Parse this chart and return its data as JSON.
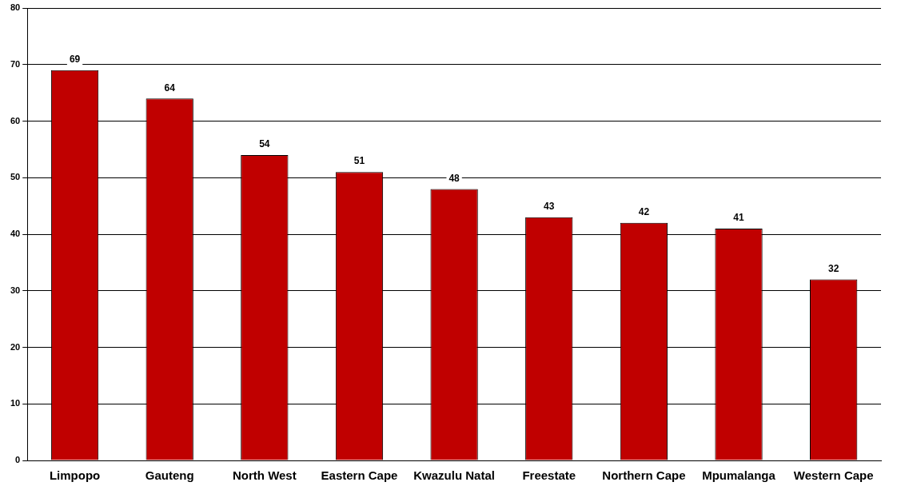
{
  "chart_data": {
    "type": "bar",
    "categories": [
      "Limpopo",
      "Gauteng",
      "North West",
      "Eastern Cape",
      "Kwazulu Natal",
      "Freestate",
      "Northern Cape",
      "Mpumalanga",
      "Western Cape"
    ],
    "values": [
      69,
      64,
      54,
      51,
      48,
      43,
      42,
      41,
      32
    ],
    "color": "#c00000",
    "ylim": [
      0,
      80
    ],
    "yticks": [
      0,
      10,
      20,
      30,
      40,
      50,
      60,
      70,
      80
    ],
    "grid": "y",
    "data_labels": true,
    "legend": false
  }
}
